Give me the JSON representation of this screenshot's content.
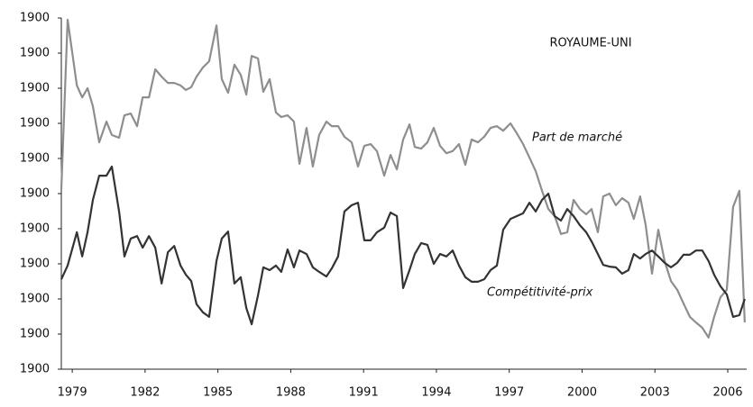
{
  "chart_data": {
    "type": "line",
    "title": "ROYAUME-UNI",
    "x": [
      1978.55,
      1978.81,
      1979.19,
      1979.41,
      1979.63,
      1979.85,
      1980.11,
      1980.41,
      1980.63,
      1980.93,
      1981.15,
      1981.41,
      1981.67,
      1981.9,
      1982.16,
      1982.42,
      1982.68,
      1982.94,
      1983.2,
      1983.46,
      1983.68,
      1983.9,
      1984.12,
      1984.38,
      1984.64,
      1984.94,
      1985.16,
      1985.42,
      1985.68,
      1985.94,
      1986.17,
      1986.39,
      1986.65,
      1986.87,
      1987.13,
      1987.39,
      1987.61,
      1987.87,
      1988.13,
      1988.36,
      1988.65,
      1988.91,
      1989.17,
      1989.47,
      1989.69,
      1989.95,
      1990.21,
      1990.51,
      1990.77,
      1991.03,
      1991.29,
      1991.55,
      1991.85,
      1992.11,
      1992.37,
      1992.63,
      1992.89,
      1993.11,
      1993.37,
      1993.63,
      1993.89,
      1994.15,
      1994.41,
      1994.67,
      1994.93,
      1995.19,
      1995.45,
      1995.71,
      1995.97,
      1996.23,
      1996.49,
      1996.75,
      1997.05,
      1997.31,
      1997.57,
      1997.83,
      1998.09,
      1998.35,
      1998.61,
      1998.87,
      1999.13,
      1999.39,
      1999.65,
      1999.91,
      2000.17,
      2000.39,
      2000.65,
      2000.87,
      2001.13,
      2001.39,
      2001.65,
      2001.91,
      2002.13,
      2002.39,
      2002.62,
      2002.88,
      2003.14,
      2003.4,
      2003.66,
      2003.92,
      2004.18,
      2004.44,
      2004.69,
      2004.95,
      2005.21,
      2005.44,
      2005.7,
      2005.96,
      2006.22,
      2006.48,
      2006.7
    ],
    "series": [
      {
        "name": "Part de marché",
        "color": "#8e8e8e",
        "values": [
          5.13,
          9.95,
          8.08,
          7.74,
          8.0,
          7.49,
          6.46,
          7.05,
          6.67,
          6.59,
          7.23,
          7.28,
          6.92,
          7.74,
          7.74,
          8.54,
          8.33,
          8.15,
          8.15,
          8.08,
          7.95,
          8.03,
          8.33,
          8.59,
          8.77,
          9.79,
          8.26,
          7.87,
          8.67,
          8.38,
          7.82,
          8.92,
          8.85,
          7.9,
          8.26,
          7.31,
          7.18,
          7.23,
          7.05,
          5.85,
          6.87,
          5.77,
          6.67,
          7.05,
          6.92,
          6.92,
          6.62,
          6.46,
          5.77,
          6.36,
          6.41,
          6.21,
          5.51,
          6.1,
          5.69,
          6.54,
          6.97,
          6.33,
          6.28,
          6.46,
          6.87,
          6.36,
          6.15,
          6.21,
          6.41,
          5.82,
          6.54,
          6.46,
          6.62,
          6.87,
          6.92,
          6.79,
          7.0,
          6.72,
          6.41,
          6.03,
          5.64,
          5.08,
          4.56,
          4.36,
          3.85,
          3.9,
          4.82,
          4.56,
          4.41,
          4.56,
          3.9,
          4.92,
          5.0,
          4.67,
          4.87,
          4.74,
          4.28,
          4.92,
          4.1,
          2.72,
          3.97,
          3.08,
          2.51,
          2.26,
          1.87,
          1.49,
          1.33,
          1.18,
          0.9,
          1.49,
          2.05,
          2.26,
          4.62,
          5.08,
          1.33
        ]
      },
      {
        "name": "Compétitivité-prix",
        "color": "#333333",
        "values": [
          2.56,
          2.95,
          3.9,
          3.21,
          3.9,
          4.82,
          5.51,
          5.51,
          5.77,
          4.49,
          3.21,
          3.72,
          3.79,
          3.46,
          3.79,
          3.46,
          2.44,
          3.33,
          3.51,
          2.95,
          2.69,
          2.51,
          1.85,
          1.62,
          1.49,
          3.08,
          3.72,
          3.92,
          2.44,
          2.62,
          1.74,
          1.28,
          2.1,
          2.9,
          2.82,
          2.95,
          2.77,
          3.41,
          2.9,
          3.38,
          3.28,
          2.9,
          2.77,
          2.64,
          2.87,
          3.21,
          4.49,
          4.67,
          4.74,
          3.67,
          3.67,
          3.9,
          4.03,
          4.46,
          4.36,
          2.31,
          2.82,
          3.28,
          3.59,
          3.54,
          3.0,
          3.28,
          3.21,
          3.38,
          2.95,
          2.62,
          2.49,
          2.49,
          2.56,
          2.82,
          2.95,
          3.97,
          4.28,
          4.36,
          4.44,
          4.74,
          4.49,
          4.82,
          5.0,
          4.36,
          4.23,
          4.56,
          4.36,
          4.1,
          3.9,
          3.64,
          3.28,
          2.97,
          2.92,
          2.9,
          2.72,
          2.82,
          3.28,
          3.15,
          3.28,
          3.38,
          3.21,
          3.03,
          2.9,
          3.03,
          3.26,
          3.26,
          3.38,
          3.38,
          3.08,
          2.69,
          2.36,
          2.13,
          1.49,
          1.54,
          2.0
        ]
      }
    ],
    "xlim": [
      1978.55,
      2006.78
    ],
    "xticks": [
      1979,
      1982,
      1985,
      1988,
      1991,
      1994,
      1997,
      2000,
      2003,
      2006
    ],
    "ylim": [
      0,
      10
    ],
    "yticks": [
      {
        "value": 0,
        "label": "1900"
      },
      {
        "value": 1,
        "label": "1900"
      },
      {
        "value": 2,
        "label": "1900"
      },
      {
        "value": 3,
        "label": "1900"
      },
      {
        "value": 4,
        "label": "1900"
      },
      {
        "value": 5,
        "label": "1900"
      },
      {
        "value": 6,
        "label": "1900"
      },
      {
        "value": 7,
        "label": "1900"
      },
      {
        "value": 8,
        "label": "1900"
      },
      {
        "value": 9,
        "label": "1900"
      },
      {
        "value": 10,
        "label": "1900"
      }
    ],
    "grid": false
  }
}
